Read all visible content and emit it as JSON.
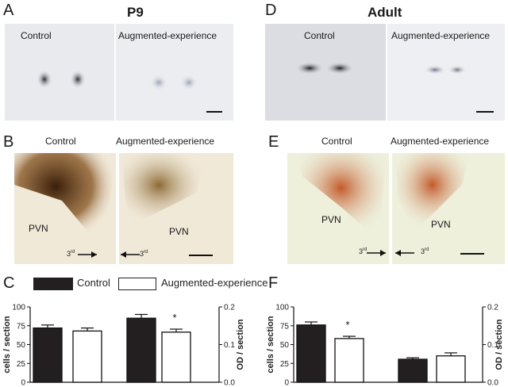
{
  "figure": {
    "letters": {
      "A": "A",
      "B": "B",
      "C": "C",
      "D": "D",
      "E": "E",
      "F": "F"
    },
    "titles": {
      "left": "P9",
      "right": "Adult"
    },
    "panelA": {
      "left_label": "Control",
      "right_label": "Augmented-experience"
    },
    "panelB": {
      "left_label": "Control",
      "right_label": "Augmented-experience",
      "pvn_left": "PVN",
      "pvn_right": "PVN",
      "third_left": "3",
      "third_right": "3",
      "sup": "rd"
    },
    "panelD": {
      "left_label": "Control",
      "right_label": "Augmented-experience"
    },
    "panelE": {
      "left_label": "Control",
      "right_label": "Augmented-experience",
      "pvn_left": "PVN",
      "pvn_right": "PVN",
      "third_left": "3",
      "third_right": "3",
      "sup": "rd"
    },
    "legend": {
      "control": "Control",
      "augmented": "Augmented-experience"
    },
    "colors": {
      "control": "#231f20",
      "augmented": "#ffffff"
    }
  },
  "chart_data": [
    {
      "type": "bar",
      "panel": "C",
      "categories": [
        "cells / section",
        "OD / section"
      ],
      "series": [
        {
          "name": "Control",
          "values": [
            72,
            0.17
          ],
          "errors": [
            4,
            0.01
          ]
        },
        {
          "name": "Augmented-experience",
          "values": [
            68,
            0.133
          ],
          "errors": [
            4,
            0.008
          ]
        }
      ],
      "ylabel_left": "cells / section",
      "ylabel_right": "OD / section",
      "ylim_left": [
        0,
        100
      ],
      "ylim_right": [
        0,
        0.2
      ],
      "yticks_left": [
        "0",
        "25",
        "50",
        "75",
        "100"
      ],
      "yticks_right": [
        "0.0",
        "0.1",
        "0.2"
      ],
      "significance": [
        {
          "group": 1,
          "label": "*"
        }
      ]
    },
    {
      "type": "bar",
      "panel": "F",
      "categories": [
        "cells / section",
        "OD / section"
      ],
      "series": [
        {
          "name": "Control",
          "values": [
            76,
            0.061
          ],
          "errors": [
            4,
            0.004
          ]
        },
        {
          "name": "Augmented-experience",
          "values": [
            58,
            0.07
          ],
          "errors": [
            3,
            0.008
          ]
        }
      ],
      "ylabel_left": "cells / section",
      "ylabel_right": "OD / section",
      "ylim_left": [
        0,
        100
      ],
      "ylim_right": [
        0,
        0.2
      ],
      "yticks_left": [
        "0",
        "25",
        "50",
        "75",
        "100"
      ],
      "yticks_right": [
        "0.0",
        "0.1",
        "0.2"
      ],
      "significance": [
        {
          "group": 0,
          "label": "*"
        }
      ]
    }
  ]
}
